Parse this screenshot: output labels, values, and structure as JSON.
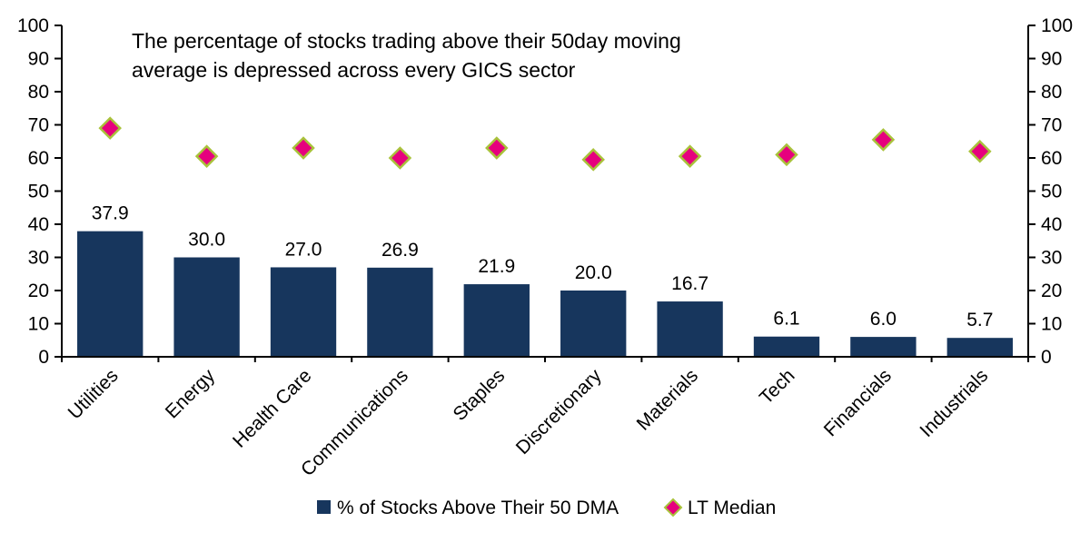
{
  "chart_data": {
    "type": "bar",
    "title": "The percentage of stocks trading above their 50day moving average is depressed across every GICS sector",
    "title_lines": [
      "The percentage of stocks trading above their 50day moving",
      "average is depressed across every GICS sector"
    ],
    "categories": [
      "Utilities",
      "Energy",
      "Health Care",
      "Communications",
      "Staples",
      "Discretionary",
      "Materials",
      "Tech",
      "Financials",
      "Industrials"
    ],
    "series": [
      {
        "name": "% of Stocks Above Their 50 DMA",
        "type": "bar",
        "values": [
          37.9,
          30.0,
          27.0,
          26.9,
          21.9,
          20.0,
          16.7,
          6.1,
          6.0,
          5.7
        ]
      },
      {
        "name": "LT Median",
        "type": "scatter-diamond",
        "values": [
          69,
          60.5,
          63,
          60,
          63,
          59.5,
          60.5,
          61,
          65.5,
          62
        ]
      }
    ],
    "value_labels": [
      "37.9",
      "30.0",
      "27.0",
      "26.9",
      "21.9",
      "20.0",
      "16.7",
      "6.1",
      "6.0",
      "5.7"
    ],
    "ylim": [
      0,
      100
    ],
    "ytick_step": 10,
    "ytick_labels": [
      "0",
      "10",
      "20",
      "30",
      "40",
      "50",
      "60",
      "70",
      "80",
      "90",
      "100"
    ],
    "grid": false,
    "legend_position": "bottom",
    "colors": {
      "bar": "#17365D",
      "diamond_fill": "#E6007E",
      "diamond_stroke": "#A9C23B",
      "axis": "#000000",
      "text": "#000000",
      "background": "#FFFFFF"
    }
  }
}
